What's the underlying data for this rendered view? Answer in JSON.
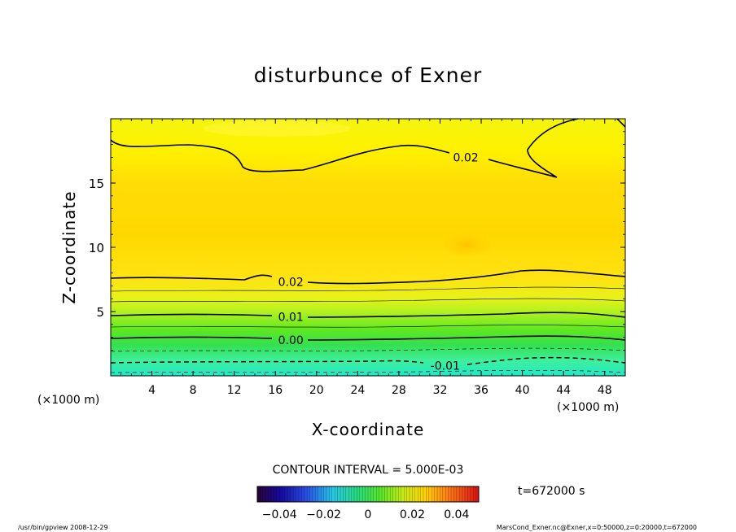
{
  "chart_data": {
    "type": "heatmap",
    "title": "disturbunce of Exner",
    "xlabel": "X-coordinate",
    "ylabel": "Z-coordinate",
    "x_unit": "(×1000 m)",
    "y_unit": "(×1000 m)",
    "xlim": [
      0,
      50
    ],
    "ylim": [
      0,
      20
    ],
    "x_ticks": [
      "4",
      "8",
      "12",
      "16",
      "20",
      "24",
      "28",
      "32",
      "36",
      "40",
      "44",
      "48"
    ],
    "x_tick_values": [
      4,
      8,
      12,
      16,
      20,
      24,
      28,
      32,
      36,
      40,
      44,
      48
    ],
    "y_ticks": [
      "5",
      "10",
      "15"
    ],
    "y_tick_values": [
      5,
      10,
      15
    ],
    "contour_interval": "CONTOUR INTERVAL = 5.000E-03",
    "contour_labels": [
      {
        "text": "0.02",
        "x": 34.5,
        "z": 17.0
      },
      {
        "text": "0.02",
        "x": 17.5,
        "z": 7.3
      },
      {
        "text": "0.01",
        "x": 17.5,
        "z": 4.6
      },
      {
        "text": "0.00",
        "x": 17.5,
        "z": 2.8
      },
      {
        "text": "-0.01",
        "x": 32.5,
        "z": 0.8
      }
    ],
    "colorbar": {
      "range": [
        -0.05,
        0.05
      ],
      "tick_labels": [
        "−0.04",
        "−0.02",
        "0",
        "0.02",
        "0.04"
      ],
      "tick_values": [
        -0.04,
        -0.02,
        0,
        0.02,
        0.04
      ],
      "time_label": "t=672000 s"
    },
    "field_summary": {
      "surface_value": -0.015,
      "max_value": 0.027,
      "max_location": {
        "x": 34.5,
        "z": 10.3
      }
    }
  },
  "footer": {
    "left": "/usr/bin/gpview   2008-12-29",
    "right": "MarsCond_Exner.nc@Exner,x=0:50000,z=0:20000,t=672000"
  },
  "colors": {
    "background": "#ffffff",
    "text": "#000000"
  }
}
